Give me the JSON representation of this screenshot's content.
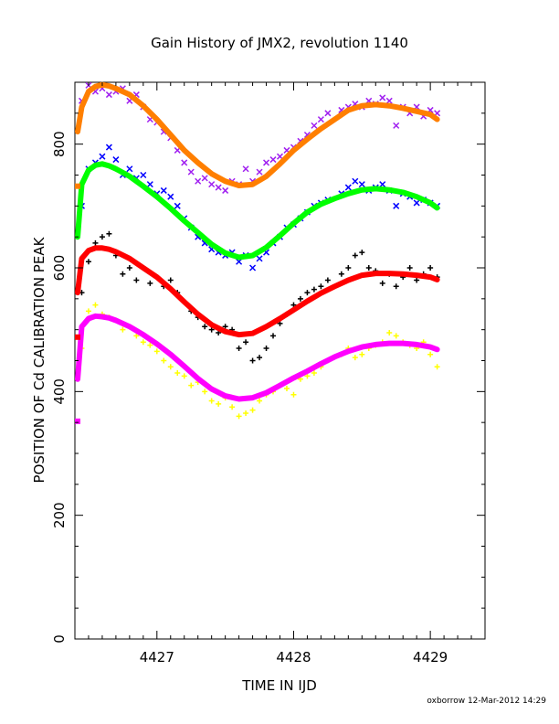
{
  "chart_data": {
    "type": "scatter",
    "title": "Gain History of JMX2, revolution 1140",
    "xlabel": "TIME IN IJD",
    "ylabel": "POSITION OF Cd CALIBRATION PEAK",
    "xlim": [
      4426.4,
      4429.4
    ],
    "ylim": [
      0,
      900
    ],
    "xticks": [
      4427,
      4428,
      4429
    ],
    "yticks": [
      0,
      200,
      400,
      600,
      800
    ],
    "grid": false,
    "legend": "none",
    "footer": "oxborrow 12-Mar-2012 14:29",
    "series": [
      {
        "color": "#a020f0",
        "marker": "x",
        "x": [
          4426.45,
          4426.5,
          4426.55,
          4426.6,
          4426.65,
          4426.7,
          4426.75,
          4426.8,
          4426.85,
          4426.9,
          4426.95,
          4427.0,
          4427.05,
          4427.1,
          4427.15,
          4427.2,
          4427.25,
          4427.3,
          4427.35,
          4427.4,
          4427.45,
          4427.5,
          4427.55,
          4427.6,
          4427.65,
          4427.7,
          4427.75,
          4427.8,
          4427.85,
          4427.9,
          4427.95,
          4428.0,
          4428.05,
          4428.1,
          4428.15,
          4428.2,
          4428.25,
          4428.35,
          4428.4,
          4428.45,
          4428.5,
          4428.55,
          4428.6,
          4428.65,
          4428.7,
          4428.75,
          4428.8,
          4428.85,
          4428.9,
          4428.95,
          4429.0,
          4429.05
        ],
        "y": [
          870,
          895,
          885,
          890,
          880,
          885,
          890,
          870,
          880,
          860,
          840,
          835,
          820,
          810,
          790,
          770,
          755,
          740,
          745,
          735,
          730,
          725,
          740,
          735,
          760,
          740,
          755,
          770,
          775,
          780,
          790,
          795,
          805,
          815,
          830,
          840,
          850,
          855,
          860,
          865,
          860,
          870,
          865,
          875,
          870,
          830,
          860,
          850,
          860,
          845,
          855,
          850
        ]
      },
      {
        "color": "#ff7f00",
        "marker": "line",
        "x": [
          4426.42,
          4426.45,
          4426.5,
          4426.55,
          4426.6,
          4426.65,
          4426.7,
          4426.8,
          4426.9,
          4427.0,
          4427.1,
          4427.2,
          4427.3,
          4427.4,
          4427.5,
          4427.6,
          4427.7,
          4427.8,
          4427.9,
          4428.0,
          4428.1,
          4428.2,
          4428.3,
          4428.4,
          4428.5,
          4428.6,
          4428.7,
          4428.8,
          4428.9,
          4429.0,
          4429.05
        ],
        "y": [
          820,
          860,
          885,
          893,
          896,
          894,
          890,
          880,
          862,
          840,
          815,
          790,
          770,
          752,
          740,
          733,
          735,
          748,
          768,
          790,
          808,
          825,
          840,
          855,
          862,
          864,
          862,
          858,
          853,
          848,
          840
        ]
      },
      {
        "color": "#0000ff",
        "marker": "x",
        "x": [
          4426.45,
          4426.5,
          4426.55,
          4426.6,
          4426.65,
          4426.7,
          4426.75,
          4426.8,
          4426.85,
          4426.9,
          4426.95,
          4427.0,
          4427.05,
          4427.1,
          4427.15,
          4427.2,
          4427.25,
          4427.3,
          4427.35,
          4427.4,
          4427.45,
          4427.5,
          4427.55,
          4427.6,
          4427.65,
          4427.7,
          4427.75,
          4427.8,
          4427.85,
          4427.9,
          4427.95,
          4428.0,
          4428.05,
          4428.1,
          4428.15,
          4428.2,
          4428.25,
          4428.35,
          4428.4,
          4428.45,
          4428.5,
          4428.55,
          4428.6,
          4428.65,
          4428.7,
          4428.75,
          4428.8,
          4428.85,
          4428.9,
          4428.95,
          4429.0,
          4429.05
        ],
        "y": [
          700,
          760,
          770,
          780,
          795,
          775,
          750,
          760,
          745,
          750,
          735,
          720,
          725,
          715,
          700,
          680,
          665,
          650,
          640,
          630,
          625,
          620,
          625,
          610,
          620,
          600,
          615,
          625,
          640,
          650,
          665,
          670,
          680,
          690,
          700,
          705,
          710,
          720,
          730,
          740,
          735,
          725,
          730,
          735,
          725,
          700,
          720,
          715,
          705,
          710,
          705,
          700
        ]
      },
      {
        "color": "#00ff00",
        "marker": "line",
        "x": [
          4426.42,
          4426.45,
          4426.5,
          4426.55,
          4426.6,
          4426.65,
          4426.7,
          4426.8,
          4426.9,
          4427.0,
          4427.1,
          4427.2,
          4427.3,
          4427.4,
          4427.5,
          4427.6,
          4427.7,
          4427.8,
          4427.9,
          4428.0,
          4428.1,
          4428.2,
          4428.3,
          4428.4,
          4428.5,
          4428.6,
          4428.7,
          4428.8,
          4428.9,
          4429.0,
          4429.05
        ],
        "y": [
          650,
          735,
          758,
          766,
          768,
          765,
          760,
          748,
          732,
          715,
          696,
          676,
          657,
          638,
          624,
          617,
          620,
          633,
          652,
          672,
          690,
          703,
          712,
          720,
          726,
          728,
          726,
          722,
          715,
          705,
          697
        ]
      },
      {
        "color": "#000000",
        "marker": "plus",
        "x": [
          4426.45,
          4426.5,
          4426.55,
          4426.6,
          4426.65,
          4426.7,
          4426.75,
          4426.8,
          4426.85,
          4426.9,
          4426.95,
          4427.0,
          4427.05,
          4427.1,
          4427.15,
          4427.2,
          4427.25,
          4427.3,
          4427.35,
          4427.4,
          4427.45,
          4427.5,
          4427.55,
          4427.6,
          4427.65,
          4427.7,
          4427.75,
          4427.8,
          4427.85,
          4427.9,
          4427.95,
          4428.0,
          4428.05,
          4428.1,
          4428.15,
          4428.2,
          4428.25,
          4428.35,
          4428.4,
          4428.45,
          4428.5,
          4428.55,
          4428.6,
          4428.65,
          4428.7,
          4428.75,
          4428.8,
          4428.85,
          4428.9,
          4428.95,
          4429.0,
          4429.05
        ],
        "y": [
          560,
          610,
          640,
          650,
          655,
          620,
          590,
          600,
          580,
          600,
          575,
          585,
          570,
          580,
          560,
          545,
          530,
          520,
          505,
          500,
          495,
          505,
          500,
          470,
          480,
          450,
          455,
          470,
          490,
          510,
          525,
          540,
          550,
          560,
          565,
          570,
          580,
          590,
          600,
          620,
          625,
          600,
          595,
          575,
          590,
          570,
          585,
          600,
          580,
          590,
          600,
          585
        ]
      },
      {
        "color": "#ff0000",
        "marker": "line",
        "x": [
          4426.42,
          4426.45,
          4426.5,
          4426.55,
          4426.6,
          4426.65,
          4426.7,
          4426.8,
          4426.9,
          4427.0,
          4427.1,
          4427.2,
          4427.3,
          4427.4,
          4427.5,
          4427.6,
          4427.7,
          4427.8,
          4427.9,
          4428.0,
          4428.1,
          4428.2,
          4428.3,
          4428.4,
          4428.5,
          4428.6,
          4428.7,
          4428.8,
          4428.9,
          4429.0,
          4429.05
        ],
        "y": [
          560,
          615,
          628,
          632,
          632,
          630,
          626,
          615,
          600,
          585,
          566,
          545,
          525,
          508,
          497,
          492,
          494,
          505,
          518,
          532,
          546,
          559,
          570,
          580,
          588,
          591,
          591,
          590,
          588,
          585,
          581
        ]
      },
      {
        "color": "#ffff00",
        "marker": "plus",
        "x": [
          4426.45,
          4426.5,
          4426.55,
          4426.6,
          4426.65,
          4426.7,
          4426.75,
          4426.8,
          4426.85,
          4426.9,
          4426.95,
          4427.0,
          4427.05,
          4427.1,
          4427.15,
          4427.2,
          4427.25,
          4427.3,
          4427.35,
          4427.4,
          4427.45,
          4427.5,
          4427.55,
          4427.6,
          4427.65,
          4427.7,
          4427.75,
          4427.8,
          4427.85,
          4427.9,
          4427.95,
          4428.0,
          4428.05,
          4428.1,
          4428.15,
          4428.2,
          4428.25,
          4428.35,
          4428.4,
          4428.45,
          4428.5,
          4428.55,
          4428.6,
          4428.65,
          4428.7,
          4428.75,
          4428.8,
          4428.85,
          4428.9,
          4428.95,
          4429.0,
          4429.05
        ],
        "y": [
          470,
          530,
          540,
          525,
          520,
          515,
          500,
          505,
          490,
          480,
          475,
          465,
          450,
          440,
          430,
          425,
          410,
          415,
          400,
          385,
          380,
          390,
          375,
          360,
          365,
          370,
          385,
          395,
          400,
          410,
          405,
          395,
          420,
          425,
          430,
          440,
          450,
          460,
          470,
          455,
          460,
          470,
          475,
          480,
          495,
          490,
          480,
          475,
          470,
          480,
          460,
          440
        ]
      },
      {
        "color": "#ff00ff",
        "marker": "line",
        "x": [
          4426.42,
          4426.45,
          4426.5,
          4426.55,
          4426.6,
          4426.65,
          4426.7,
          4426.8,
          4426.9,
          4427.0,
          4427.1,
          4427.2,
          4427.3,
          4427.4,
          4427.5,
          4427.6,
          4427.7,
          4427.8,
          4427.9,
          4428.0,
          4428.1,
          4428.2,
          4428.3,
          4428.4,
          4428.5,
          4428.6,
          4428.7,
          4428.8,
          4428.9,
          4429.0,
          4429.05
        ],
        "y": [
          420,
          505,
          518,
          522,
          521,
          519,
          515,
          505,
          492,
          477,
          460,
          441,
          421,
          404,
          393,
          388,
          390,
          398,
          410,
          422,
          433,
          445,
          456,
          465,
          472,
          476,
          478,
          478,
          476,
          472,
          468
        ]
      }
    ],
    "outliers": {
      "x": [
        4426.42,
        4426.42,
        4426.42
      ],
      "y": [
        732,
        488,
        352
      ],
      "colors": [
        "#ff7f00",
        "#ff0000",
        "#ff00ff"
      ]
    }
  }
}
